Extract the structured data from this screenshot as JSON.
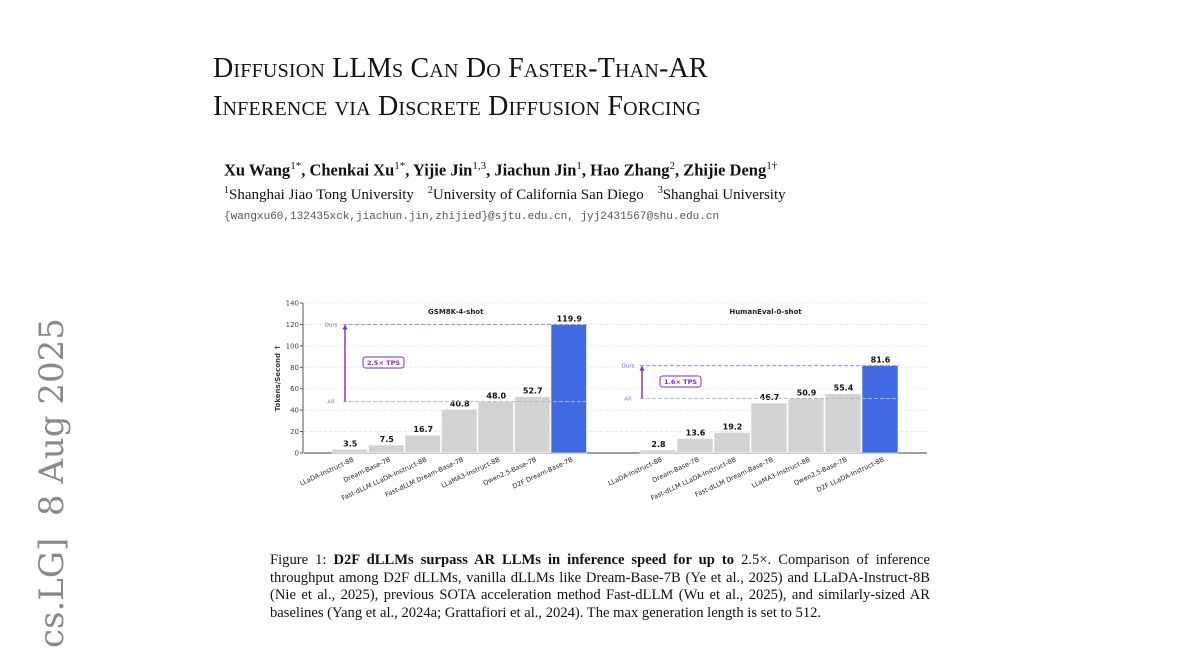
{
  "sidebar_stamp": "cs.LG]  8 Aug 2025",
  "paper": {
    "title_lines": [
      "Diffusion LLMs Can Do Faster-Than-AR",
      "Inference via Discrete Diffusion Forcing"
    ],
    "authors": [
      {
        "name": "Xu Wang",
        "sup": "1*"
      },
      {
        "name": "Chenkai Xu",
        "sup": "1*"
      },
      {
        "name": "Yijie Jin",
        "sup": "1,3"
      },
      {
        "name": "Jiachun Jin",
        "sup": "1"
      },
      {
        "name": "Hao Zhang",
        "sup": "2"
      },
      {
        "name": "Zhijie Deng",
        "sup": "1†"
      }
    ],
    "affiliations": [
      {
        "sup": "1",
        "name": "Shanghai Jiao Tong University"
      },
      {
        "sup": "2",
        "name": "University of California San Diego"
      },
      {
        "sup": "3",
        "name": "Shanghai University"
      }
    ],
    "emails": "{wangxu60,132435xck,jiachun.jin,zhijied}@sjtu.edu.cn, jyj2431567@shu.edu.cn"
  },
  "caption": {
    "label": "Figure 1: ",
    "bold": "D2F dLLMs surpass AR LLMs in inference speed for up to ",
    "bold_value": "2.5×.",
    "text": " Comparison of inference throughput among D2F dLLMs, vanilla dLLMs like Dream-Base-7B (Ye et al., 2025) and LLaDA-Instruct-8B (Nie et al., 2025), previous SOTA acceleration method Fast-dLLM (Wu et al., 2025), and similarly-sized AR baselines (Yang et al., 2024a; Grattafiori et al., 2024). The max generation length is set to 512."
  },
  "colors": {
    "bar_baseline": "#d3d3d3",
    "bar_ours": "#4169e1",
    "speedup_accent": "#7b2fbe",
    "ours_line": "#9b8fe0",
    "ar_line": "#a9b9d6",
    "grid": "#e6e6e6"
  },
  "chart_data": [
    {
      "type": "bar",
      "title": "GSM8K-4-shot",
      "ylabel": "Tokens/Second ↑",
      "xlabel": "",
      "ylim": [
        0,
        140
      ],
      "yticks": [
        0,
        20,
        40,
        60,
        80,
        100,
        120,
        140
      ],
      "grid": true,
      "categories": [
        "LLaDA-Instruct-8B",
        "Dream-Base-7B",
        "Fast-dLLM LLaDA-Instruct-8B",
        "Fast-dLLM Dream-Base-7B",
        "LLaMA3-Instruct-8B",
        "Qwen2.5-Base-7B",
        "D2F Dream-Base-7B"
      ],
      "values": [
        3.5,
        7.5,
        16.7,
        40.8,
        48.0,
        52.7,
        119.9
      ],
      "value_labels": [
        "3.5",
        "7.5",
        "16.7",
        "40.8",
        "48.0",
        "52.7",
        "119.9"
      ],
      "highlight_index": 6,
      "reference_lines": [
        {
          "label": "Ours",
          "value": 119.9
        },
        {
          "label": "AR",
          "value": 48.0
        }
      ],
      "annotation": "2.5× TPS"
    },
    {
      "type": "bar",
      "title": "HumanEval-0-shot",
      "ylabel": "",
      "xlabel": "",
      "ylim": [
        0,
        140
      ],
      "yticks": [
        0,
        20,
        40,
        60,
        80,
        100,
        120,
        140
      ],
      "grid": true,
      "categories": [
        "LLaDA-Instruct-8B",
        "Dream-Base-7B",
        "Fast-dLLM LLaDA-Instruct-8B",
        "Fast-dLLM Dream-Base-7B",
        "LLaMA3-Instruct-8B",
        "Qwen2.5-Base-7B",
        "D2F LLaDA-Instruct-8B"
      ],
      "values": [
        2.8,
        13.6,
        19.2,
        46.7,
        50.9,
        55.4,
        81.6
      ],
      "value_labels": [
        "2.8",
        "13.6",
        "19.2",
        "46.7",
        "50.9",
        "55.4",
        "81.6"
      ],
      "highlight_index": 6,
      "reference_lines": [
        {
          "label": "Ours",
          "value": 81.6
        },
        {
          "label": "AR",
          "value": 50.9
        }
      ],
      "annotation": "1.6× TPS"
    }
  ]
}
